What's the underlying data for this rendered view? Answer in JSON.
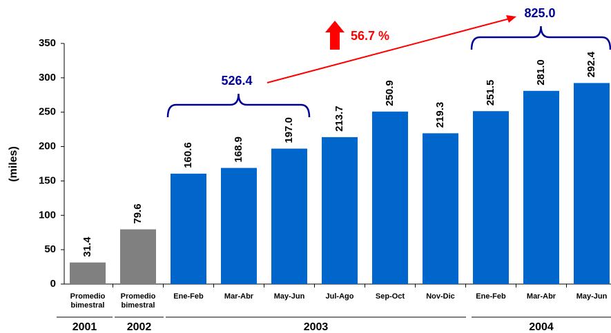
{
  "chart_data": {
    "type": "bar",
    "y_label": "(miles)",
    "categories": [
      "Promedio bimestral",
      "Promedio bimestral",
      "Ene-Feb",
      "Mar-Abr",
      "May-Jun",
      "Jul-Ago",
      "Sep-Oct",
      "Nov-Dic",
      "Ene-Feb",
      "Mar-Abr",
      "May-Jun"
    ],
    "values": [
      31.4,
      79.6,
      160.6,
      168.9,
      197.0,
      213.7,
      250.9,
      219.3,
      251.5,
      281.0,
      292.4
    ],
    "value_labels": [
      "31.4",
      "79.6",
      "160.6",
      "168.9",
      "197.0",
      "213.7",
      "250.9",
      "219.3",
      "251.5",
      "281.0",
      "292.4"
    ],
    "colors": [
      "#808080",
      "#808080",
      "#0066cc",
      "#0066cc",
      "#0066cc",
      "#0066cc",
      "#0066cc",
      "#0066cc",
      "#0066cc",
      "#0066cc",
      "#0066cc"
    ],
    "years": [
      "2001",
      "2002",
      "2003",
      "2004"
    ],
    "annotations": [
      "526.4",
      "825.0",
      "56.7 %"
    ],
    "ylim": [
      0,
      350
    ],
    "yticks": [
      0,
      50,
      100,
      150,
      200,
      250,
      300,
      350
    ]
  }
}
